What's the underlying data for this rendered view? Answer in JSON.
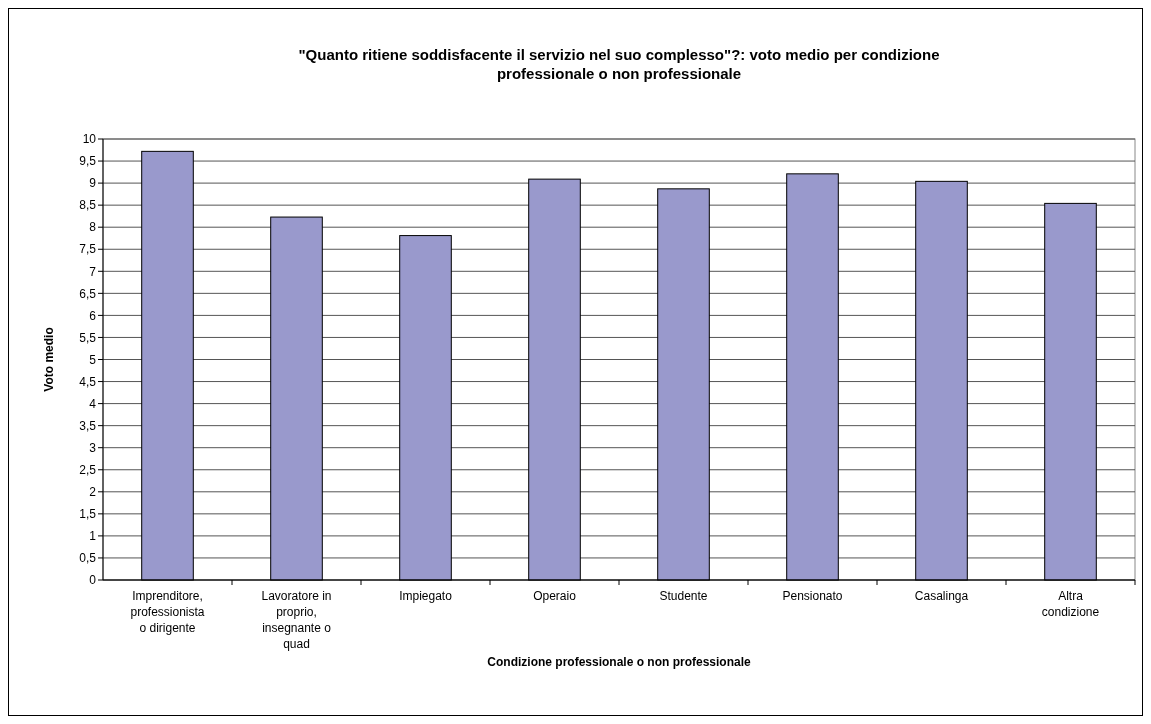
{
  "chart_data": {
    "type": "bar",
    "title": "\"Quanto ritiene soddisfacente il servizio nel suo complesso\"?: voto medio per condizione professionale o non professionale",
    "xlabel": "Condizione professionale o non professionale",
    "ylabel": "Voto medio",
    "categories": [
      "Imprenditore, professionista o dirigente",
      "Lavoratore in proprio, insegnante o quad",
      "Impiegato",
      "Operaio",
      "Studente",
      "Pensionato",
      "Casalinga",
      "Altra condizione"
    ],
    "values": [
      9.72,
      8.23,
      7.81,
      9.09,
      8.87,
      9.21,
      9.04,
      8.54
    ],
    "color": "#9999cc",
    "ylim": [
      0,
      10
    ],
    "yticks": [
      0,
      {
        "value": 0.5,
        "label": "0,5"
      },
      1,
      {
        "value": 1.5,
        "label": "1,5"
      },
      2,
      {
        "value": 2.5,
        "label": "2,5"
      },
      3,
      {
        "value": 3.5,
        "label": "3,5"
      },
      4,
      {
        "value": 4.5,
        "label": "4,5"
      },
      5,
      {
        "value": 5.5,
        "label": "5,5"
      },
      6,
      {
        "value": 6.5,
        "label": "6,5"
      },
      7,
      {
        "value": 7.5,
        "label": "7,5"
      },
      8,
      {
        "value": 8.5,
        "label": "8,5"
      },
      9,
      {
        "value": 9.5,
        "label": "9,5"
      },
      10
    ],
    "grid": "y"
  }
}
